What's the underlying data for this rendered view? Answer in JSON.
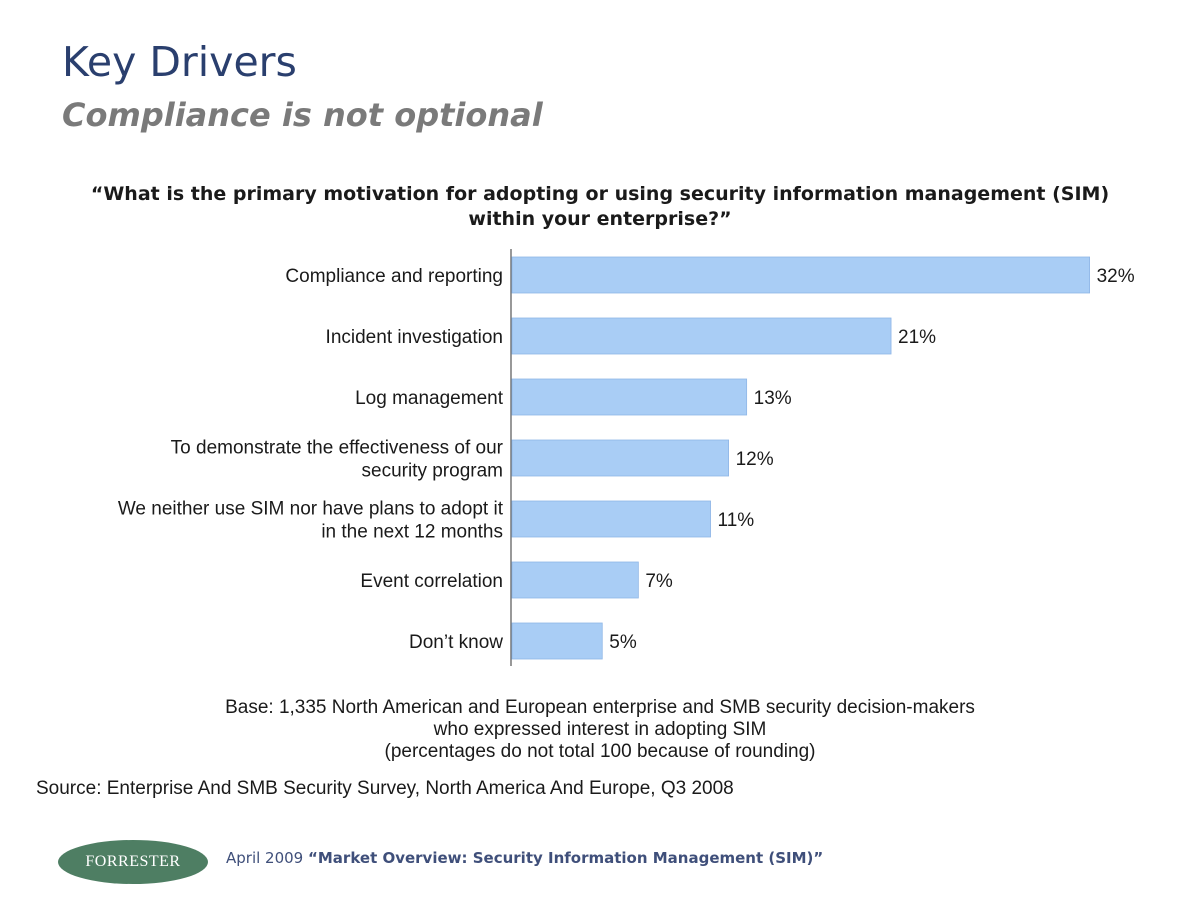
{
  "slide": {
    "title": "Key Drivers",
    "subtitle": "Compliance is not optional"
  },
  "chart_data": {
    "type": "bar",
    "orientation": "horizontal",
    "title_lines": [
      "“What is the primary motivation for adopting or using security information management (SIM)",
      "within your enterprise?”"
    ],
    "categories": [
      [
        "Compliance and reporting"
      ],
      [
        "Incident investigation"
      ],
      [
        "Log management"
      ],
      [
        "To demonstrate the effectiveness of our",
        "security program"
      ],
      [
        "We neither use SIM nor have plans to adopt it",
        "in the next 12 months"
      ],
      [
        "Event correlation"
      ],
      [
        "Don’t know"
      ]
    ],
    "values": [
      32,
      21,
      13,
      12,
      11,
      7,
      5
    ],
    "value_labels": [
      "32%",
      "21%",
      "13%",
      "12%",
      "11%",
      "7%",
      "5%"
    ],
    "unit": "%",
    "bar_color": "#a9cdf5",
    "bar_border_color": "#8fb6e6",
    "grid": false,
    "legend": "none"
  },
  "notes": {
    "base_lines": [
      "Base: 1,335 North American and European enterprise and SMB security decision-makers",
      "who expressed interest in adopting SIM",
      "(percentages do not total 100 because of rounding)"
    ],
    "source": "Source: Enterprise And SMB Security Survey, North America And Europe, Q3 2008"
  },
  "footer": {
    "logo_text": "FORRESTER",
    "date": "April 2009",
    "report": "“Market Overview: Security Information Management (SIM)”",
    "logo_color": "#4e7e63"
  }
}
